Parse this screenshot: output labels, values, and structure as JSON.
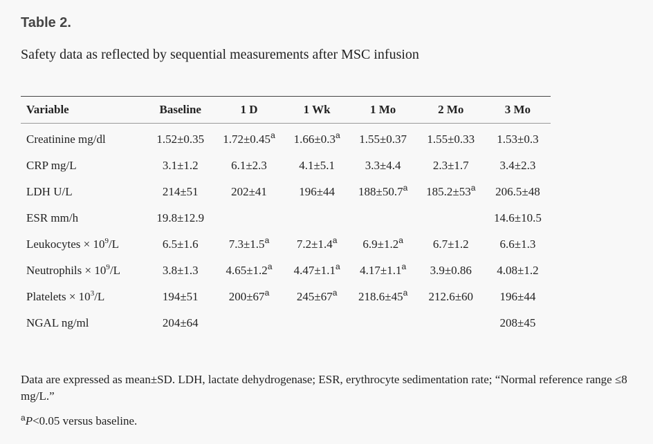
{
  "title": "Table 2.",
  "caption": "Safety data as reflected by sequential measurements after MSC infusion",
  "columns": [
    "Variable",
    "Baseline",
    "1 D",
    "1 Wk",
    "1 Mo",
    "2 Mo",
    "3 Mo"
  ],
  "rows": [
    {
      "label": "Creatinine mg/dl",
      "cells": [
        {
          "v": "1.52±0.35",
          "sup": ""
        },
        {
          "v": "1.72±0.45",
          "sup": "a"
        },
        {
          "v": "1.66±0.3",
          "sup": "a"
        },
        {
          "v": "1.55±0.37",
          "sup": ""
        },
        {
          "v": "1.55±0.33",
          "sup": ""
        },
        {
          "v": "1.53±0.3",
          "sup": ""
        }
      ]
    },
    {
      "label": "CRP mg/L",
      "cells": [
        {
          "v": "3.1±1.2",
          "sup": ""
        },
        {
          "v": "6.1±2.3",
          "sup": ""
        },
        {
          "v": "4.1±5.1",
          "sup": ""
        },
        {
          "v": "3.3±4.4",
          "sup": ""
        },
        {
          "v": "2.3±1.7",
          "sup": ""
        },
        {
          "v": "3.4±2.3",
          "sup": ""
        }
      ]
    },
    {
      "label": "LDH U/L",
      "cells": [
        {
          "v": "214±51",
          "sup": ""
        },
        {
          "v": "202±41",
          "sup": ""
        },
        {
          "v": "196±44",
          "sup": ""
        },
        {
          "v": "188±50.7",
          "sup": "a"
        },
        {
          "v": "185.2±53",
          "sup": "a"
        },
        {
          "v": "206.5±48",
          "sup": ""
        }
      ]
    },
    {
      "label": "ESR mm/h",
      "cells": [
        {
          "v": "19.8±12.9",
          "sup": ""
        },
        {
          "v": "",
          "sup": ""
        },
        {
          "v": "",
          "sup": ""
        },
        {
          "v": "",
          "sup": ""
        },
        {
          "v": "",
          "sup": ""
        },
        {
          "v": "14.6±10.5",
          "sup": ""
        }
      ]
    },
    {
      "label": "Leukocytes × 10",
      "label_sup": "9",
      "label_suffix": "/L",
      "cells": [
        {
          "v": "6.5±1.6",
          "sup": ""
        },
        {
          "v": "7.3±1.5",
          "sup": "a"
        },
        {
          "v": "7.2±1.4",
          "sup": "a"
        },
        {
          "v": "6.9±1.2",
          "sup": "a"
        },
        {
          "v": "6.7±1.2",
          "sup": ""
        },
        {
          "v": "6.6±1.3",
          "sup": ""
        }
      ]
    },
    {
      "label": "Neutrophils × 10",
      "label_sup": "9",
      "label_suffix": "/L",
      "cells": [
        {
          "v": "3.8±1.3",
          "sup": ""
        },
        {
          "v": "4.65±1.2",
          "sup": "a"
        },
        {
          "v": "4.47±1.1",
          "sup": "a"
        },
        {
          "v": "4.17±1.1",
          "sup": "a"
        },
        {
          "v": "3.9±0.86",
          "sup": ""
        },
        {
          "v": "4.08±1.2",
          "sup": ""
        }
      ]
    },
    {
      "label": "Platelets × 10",
      "label_sup": "3",
      "label_suffix": "/L",
      "cells": [
        {
          "v": "194±51",
          "sup": ""
        },
        {
          "v": "200±67",
          "sup": "a"
        },
        {
          "v": "245±67",
          "sup": "a"
        },
        {
          "v": "218.6±45",
          "sup": "a"
        },
        {
          "v": "212.6±60",
          "sup": ""
        },
        {
          "v": "196±44",
          "sup": ""
        }
      ]
    },
    {
      "label": "NGAL ng/ml",
      "cells": [
        {
          "v": "204±64",
          "sup": ""
        },
        {
          "v": "",
          "sup": ""
        },
        {
          "v": "",
          "sup": ""
        },
        {
          "v": "",
          "sup": ""
        },
        {
          "v": "",
          "sup": ""
        },
        {
          "v": "208±45",
          "sup": ""
        }
      ]
    }
  ],
  "footnote": "Data are expressed as mean±SD. LDH, lactate dehydrogenase; ESR, erythrocyte sedimentation rate; “Normal reference range ≤8 mg/L.”",
  "footnote2_sup": "a",
  "footnote2_p": "P",
  "footnote2_text": "<0.05 versus baseline."
}
